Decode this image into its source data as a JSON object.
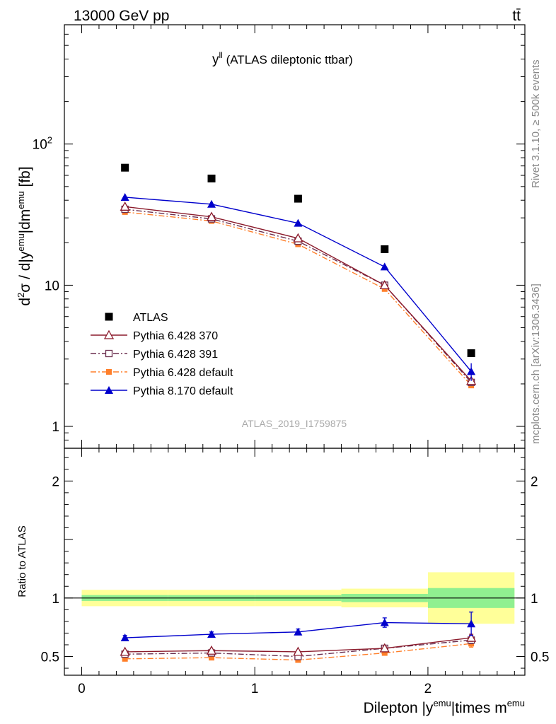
{
  "header": {
    "energy_label": "13000 GeV pp",
    "process_label": "tt̄"
  },
  "side_labels": {
    "rivet": "Rivet 3.1.10, ≥ 500k events",
    "mcplots": "mcplots.cern.ch [arXiv:1306.3436]"
  },
  "plot_title": {
    "main": "y",
    "sup": "ll",
    "rest": " (ATLAS dileptonic ttbar)"
  },
  "analysis_id": "ATLAS_2019_I1759875",
  "axes": {
    "top_ylabel": {
      "part1": "d",
      "sup1": "2",
      "part2": "σ / d|y",
      "sup2": "emu",
      "part3": "|dm",
      "sup3": "emu",
      "part4": " [fb]"
    },
    "ratio_ylabel": "Ratio to ATLAS",
    "xlabel": {
      "part1": "Dilepton |y",
      "sup1": "emu",
      "part2": "|times m",
      "sup2": "emu"
    }
  },
  "colors": {
    "atlas": "#000000",
    "p6_370": "#8b1a2b",
    "p6_391": "#6b2f4f",
    "p6_default": "#ff7f2a",
    "p8_default": "#0000cc",
    "band_inner": "#90f090",
    "band_outer": "#ffff99"
  },
  "chart_data": {
    "type": "scatter",
    "x": [
      0.25,
      0.75,
      1.25,
      1.75,
      2.25
    ],
    "xbin_edges": [
      0,
      0.5,
      1.0,
      1.5,
      2.0,
      2.5
    ],
    "xlim": [
      -0.1,
      2.56
    ],
    "ylim_main": [
      0.7,
      700
    ],
    "yscale_main": "log",
    "ylim_ratio": [
      0.34,
      2.28
    ],
    "main_yticks": [
      {
        "value": 1,
        "label": "1"
      },
      {
        "value": 10,
        "label": "10"
      },
      {
        "value": 100,
        "label": "10",
        "sup": "2"
      }
    ],
    "ratio_yticks": [
      {
        "value": 0.5,
        "label": "0.5"
      },
      {
        "value": 1,
        "label": "1"
      },
      {
        "value": 2,
        "label": "2"
      }
    ],
    "xticks": [
      {
        "value": 0,
        "label": "0"
      },
      {
        "value": 1,
        "label": "1"
      },
      {
        "value": 2,
        "label": "2"
      }
    ],
    "legend_position": "lower-left",
    "series": [
      {
        "key": "atlas",
        "name": "ATLAS",
        "marker": "filled-square",
        "line": "none",
        "values": [
          68,
          57,
          41,
          18,
          3.3
        ],
        "ratio_band_inner": [
          0.025,
          0.025,
          0.025,
          0.035,
          0.085
        ],
        "ratio_band_outer": [
          0.07,
          0.07,
          0.07,
          0.08,
          0.22
        ]
      },
      {
        "key": "p6_370",
        "name": "Pythia 6.428 370",
        "marker": "open-triangle",
        "line": "solid",
        "values": [
          36,
          30.5,
          21.5,
          10,
          2.1
        ],
        "ratio": [
          0.54,
          0.55,
          0.54,
          0.57,
          0.66
        ],
        "ratio_err": [
          0.01,
          0.01,
          0.01,
          0.015,
          0.03
        ]
      },
      {
        "key": "p6_391",
        "name": "Pythia 6.428 391",
        "marker": "open-square",
        "line": "dashdot",
        "values": [
          34.5,
          29.5,
          20.5,
          10,
          2.05
        ],
        "ratio": [
          0.52,
          0.53,
          0.5,
          0.57,
          0.64
        ],
        "ratio_err": [
          0.01,
          0.01,
          0.01,
          0.015,
          0.03
        ]
      },
      {
        "key": "p6_default",
        "name": "Pythia 6.428 default",
        "marker": "filled-square-small",
        "line": "dashdot",
        "values": [
          33,
          28.5,
          19.5,
          9.4,
          1.95
        ],
        "ratio": [
          0.48,
          0.49,
          0.47,
          0.53,
          0.61
        ],
        "ratio_err": [
          0.01,
          0.01,
          0.01,
          0.015,
          0.03
        ]
      },
      {
        "key": "p8_default",
        "name": "Pythia 8.170 default",
        "marker": "filled-triangle",
        "line": "solid",
        "values": [
          42,
          37.5,
          27.5,
          13.5,
          2.45
        ],
        "values_err": [
          1.0,
          1.0,
          0.8,
          0.6,
          0.35
        ],
        "ratio": [
          0.66,
          0.69,
          0.71,
          0.79,
          0.78
        ],
        "ratio_err": [
          0.02,
          0.02,
          0.025,
          0.04,
          0.1
        ]
      }
    ]
  }
}
